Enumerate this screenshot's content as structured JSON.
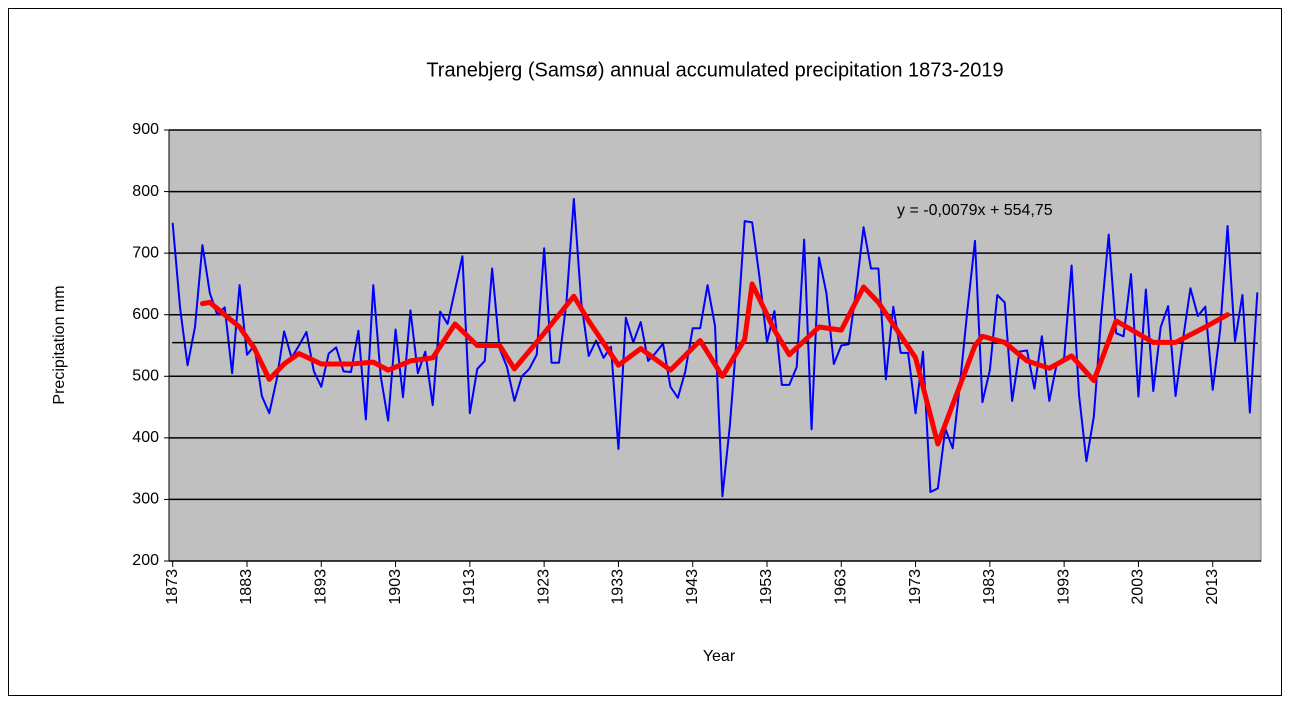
{
  "chart_data": {
    "type": "line",
    "title": "Tranebjerg (Samsø) annual  accumulated precipitation 1873-2019",
    "x_label": "Year",
    "y_label": "Precipitation mm",
    "annotation": "y = -0,0079x + 554,75",
    "xlim": [
      1872.5,
      2019.5
    ],
    "ylim": [
      200,
      900
    ],
    "yticks": [
      200,
      300,
      400,
      500,
      600,
      700,
      800,
      900
    ],
    "xticks": [
      1873,
      1883,
      1893,
      1903,
      1913,
      1923,
      1933,
      1943,
      1953,
      1963,
      1973,
      1983,
      1993,
      2003,
      2013
    ],
    "grid": true,
    "background": "#c0c0c0",
    "series": [
      {
        "color": "#0000ff",
        "width": 2,
        "x": [
          1873,
          1874,
          1875,
          1876,
          1877,
          1878,
          1879,
          1880,
          1881,
          1882,
          1883,
          1884,
          1885,
          1886,
          1887,
          1888,
          1889,
          1890,
          1891,
          1892,
          1893,
          1894,
          1895,
          1896,
          1897,
          1898,
          1899,
          1900,
          1901,
          1902,
          1903,
          1904,
          1905,
          1906,
          1907,
          1908,
          1909,
          1910,
          1911,
          1912,
          1913,
          1914,
          1915,
          1916,
          1917,
          1918,
          1919,
          1920,
          1921,
          1922,
          1923,
          1924,
          1925,
          1926,
          1927,
          1928,
          1929,
          1930,
          1931,
          1932,
          1933,
          1934,
          1935,
          1936,
          1937,
          1938,
          1939,
          1940,
          1941,
          1942,
          1943,
          1944,
          1945,
          1946,
          1947,
          1948,
          1949,
          1950,
          1951,
          1952,
          1953,
          1954,
          1955,
          1956,
          1957,
          1958,
          1959,
          1960,
          1961,
          1962,
          1963,
          1964,
          1965,
          1966,
          1967,
          1968,
          1969,
          1970,
          1971,
          1972,
          1973,
          1974,
          1975,
          1976,
          1977,
          1978,
          1979,
          1980,
          1981,
          1982,
          1983,
          1984,
          1985,
          1986,
          1987,
          1988,
          1989,
          1990,
          1991,
          1992,
          1993,
          1994,
          1995,
          1996,
          1997,
          1998,
          1999,
          2000,
          2001,
          2002,
          2003,
          2004,
          2005,
          2006,
          2007,
          2008,
          2009,
          2010,
          2011,
          2012,
          2013,
          2014,
          2015,
          2016,
          2017,
          2018,
          2019
        ],
        "values": [
          748,
          610,
          518,
          580,
          713,
          635,
          600,
          612,
          505,
          648,
          535,
          550,
          468,
          440,
          495,
          573,
          530,
          550,
          572,
          508,
          483,
          537,
          547,
          508,
          507,
          574,
          430,
          648,
          500,
          428,
          576,
          466,
          607,
          505,
          540,
          453,
          605,
          585,
          640,
          695,
          440,
          512,
          525,
          675,
          545,
          515,
          460,
          500,
          512,
          535,
          708,
          522,
          522,
          620,
          788,
          620,
          533,
          558,
          530,
          548,
          382,
          595,
          555,
          588,
          525,
          538,
          553,
          483,
          465,
          508,
          578,
          578,
          648,
          582,
          305,
          420,
          575,
          752,
          750,
          660,
          555,
          606,
          486,
          486,
          515,
          722,
          414,
          693,
          635,
          520,
          550,
          552,
          640,
          742,
          675,
          675,
          495,
          613,
          538,
          538,
          440,
          540,
          312,
          318,
          415,
          383,
          490,
          610,
          720,
          458,
          510,
          632,
          620,
          460,
          540,
          542,
          480,
          565,
          460,
          520,
          530,
          680,
          470,
          362,
          435,
          598,
          730,
          570,
          565,
          666,
          467,
          641,
          476,
          580,
          614,
          468,
          560,
          643,
          598,
          613,
          478,
          575,
          744,
          557,
          632,
          441,
          635
        ]
      },
      {
        "color": "#000000",
        "width": 1.5,
        "x": [
          1873,
          2019
        ],
        "values": [
          554.7,
          553.6
        ]
      },
      {
        "color": "#ff0000",
        "width": 5,
        "x": [
          1877,
          1878,
          1882,
          1884,
          1886,
          1888,
          1890,
          1893,
          1897,
          1900,
          1902,
          1905,
          1908,
          1911,
          1914,
          1917,
          1919,
          1923,
          1927,
          1929,
          1933,
          1936,
          1940,
          1944,
          1947,
          1950,
          1951,
          1954,
          1956,
          1960,
          1963,
          1966,
          1968,
          1973,
          1976,
          1981,
          1982,
          1985,
          1988,
          1991,
          1994,
          1997,
          2000,
          2005,
          2008,
          2012,
          2015
        ],
        "values": [
          618,
          620,
          580,
          545,
          495,
          520,
          537,
          520,
          520,
          523,
          510,
          525,
          530,
          585,
          550,
          550,
          512,
          570,
          630,
          590,
          518,
          545,
          510,
          558,
          500,
          560,
          650,
          575,
          535,
          580,
          575,
          645,
          620,
          530,
          390,
          550,
          565,
          555,
          525,
          513,
          533,
          493,
          590,
          555,
          555,
          580,
          600
        ]
      }
    ]
  }
}
